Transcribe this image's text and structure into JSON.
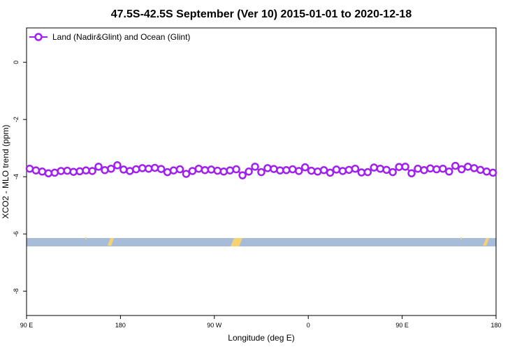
{
  "chart_data": {
    "type": "line",
    "title": "47.5S-42.5S September (Ver 10)   2015-01-01 to 2020-12-18",
    "xlabel": "Longitude (deg E)",
    "ylabel": "XCO2 - MLO trend (ppm)",
    "xlim": [
      90,
      540
    ],
    "xticks": [
      {
        "value": 90,
        "label": "90 E"
      },
      180,
      {
        "value": 270,
        "label": "90 W"
      },
      {
        "value": 360,
        "label": "0"
      },
      {
        "value": 450,
        "label": "90 E"
      },
      {
        "value": 540,
        "label": "180"
      }
    ],
    "ylim": [
      -8.85,
      1.2
    ],
    "yticks": [
      0,
      -2,
      -4,
      -6,
      -8
    ],
    "legend": "top-left",
    "series": [
      {
        "name": "Land (Nadir&Glint) and Ocean (Glint)",
        "color": "#a020f0",
        "x": [
          93,
          99,
          105,
          111,
          117,
          123,
          129,
          135,
          141,
          147,
          153,
          159,
          165,
          171,
          177,
          183,
          189,
          195,
          201,
          207,
          213,
          219,
          225,
          231,
          237,
          243,
          249,
          255,
          261,
          267,
          273,
          279,
          285,
          291,
          297,
          303,
          309,
          315,
          321,
          327,
          333,
          339,
          345,
          351,
          357,
          363,
          369,
          375,
          381,
          387,
          393,
          399,
          405,
          411,
          417,
          423,
          429,
          435,
          441,
          447,
          453,
          459,
          465,
          471,
          477,
          483,
          489,
          495,
          501,
          507,
          513,
          519,
          525,
          531,
          537
        ],
        "values": [
          -3.72,
          -3.78,
          -3.82,
          -3.88,
          -3.86,
          -3.8,
          -3.79,
          -3.83,
          -3.81,
          -3.78,
          -3.8,
          -3.65,
          -3.77,
          -3.72,
          -3.6,
          -3.75,
          -3.8,
          -3.74,
          -3.7,
          -3.72,
          -3.69,
          -3.73,
          -3.84,
          -3.78,
          -3.74,
          -3.9,
          -3.8,
          -3.72,
          -3.77,
          -3.75,
          -3.79,
          -3.82,
          -3.78,
          -3.74,
          -3.95,
          -3.82,
          -3.65,
          -3.84,
          -3.7,
          -3.73,
          -3.78,
          -3.77,
          -3.74,
          -3.8,
          -3.67,
          -3.79,
          -3.82,
          -3.77,
          -3.86,
          -3.75,
          -3.8,
          -3.76,
          -3.72,
          -3.85,
          -3.84,
          -3.68,
          -3.72,
          -3.76,
          -3.84,
          -3.66,
          -3.65,
          -3.88,
          -3.72,
          -3.77,
          -3.71,
          -3.74,
          -3.72,
          -3.82,
          -3.62,
          -3.74,
          -3.65,
          -3.7,
          -3.76,
          -3.82,
          -3.86
        ]
      }
    ]
  }
}
